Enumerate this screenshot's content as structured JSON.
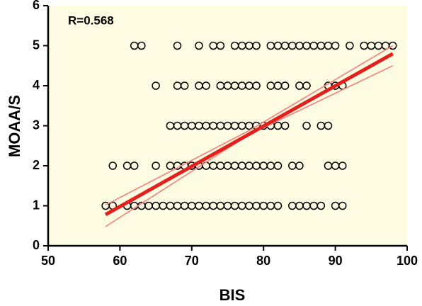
{
  "chart_data": {
    "type": "scatter",
    "annotation": "R=0.568",
    "x_label": "BIS",
    "y_label": "MOAA/S",
    "xlim": [
      50,
      100
    ],
    "xticks": [
      50,
      60,
      70,
      80,
      90,
      100
    ],
    "ylim": [
      0,
      6
    ],
    "yticks": [
      0,
      1,
      2,
      3,
      4,
      5,
      6
    ],
    "marker_color": "#000000",
    "background": "#fdfbe1",
    "x": [
      62,
      63,
      68,
      71,
      73,
      74,
      76,
      77,
      78,
      79,
      81,
      82,
      83,
      84,
      85,
      86,
      87,
      88,
      89,
      90,
      92,
      94,
      95,
      96,
      97,
      98,
      65,
      68,
      69,
      71,
      72,
      74,
      75,
      76,
      77,
      78,
      79,
      81,
      82,
      83,
      85,
      86,
      89,
      90,
      91,
      67,
      68,
      69,
      70,
      71,
      72,
      73,
      74,
      75,
      76,
      77,
      78,
      79,
      80,
      81,
      82,
      83,
      86,
      88,
      89,
      59,
      61,
      62,
      65,
      67,
      68,
      69,
      70,
      71,
      72,
      73,
      74,
      75,
      76,
      77,
      78,
      79,
      80,
      81,
      82,
      84,
      85,
      89,
      90,
      91,
      58,
      59,
      61,
      62,
      63,
      64,
      65,
      66,
      67,
      68,
      69,
      70,
      71,
      72,
      73,
      74,
      75,
      76,
      77,
      78,
      79,
      80,
      81,
      82,
      84,
      85,
      86,
      87,
      88,
      90,
      91
    ],
    "values": [
      5,
      5,
      5,
      5,
      5,
      5,
      5,
      5,
      5,
      5,
      5,
      5,
      5,
      5,
      5,
      5,
      5,
      5,
      5,
      5,
      5,
      5,
      5,
      5,
      5,
      5,
      4,
      4,
      4,
      4,
      4,
      4,
      4,
      4,
      4,
      4,
      4,
      4,
      4,
      4,
      4,
      4,
      4,
      4,
      4,
      3,
      3,
      3,
      3,
      3,
      3,
      3,
      3,
      3,
      3,
      3,
      3,
      3,
      3,
      3,
      3,
      3,
      3,
      3,
      3,
      2,
      2,
      2,
      2,
      2,
      2,
      2,
      2,
      2,
      2,
      2,
      2,
      2,
      2,
      2,
      2,
      2,
      2,
      2,
      2,
      2,
      2,
      2,
      2,
      2,
      1,
      1,
      1,
      1,
      1,
      1,
      1,
      1,
      1,
      1,
      1,
      1,
      1,
      1,
      1,
      1,
      1,
      1,
      1,
      1,
      1,
      1,
      1,
      1,
      1,
      1,
      1,
      1,
      1,
      1,
      1
    ],
    "fit": {
      "color": "#e3201b",
      "x": [
        58,
        98
      ],
      "y": [
        0.78,
        4.8
      ]
    },
    "ci": {
      "color": "#f08a86",
      "x": [
        58,
        78,
        98
      ],
      "upper": [
        1.02,
        2.88,
        5.0
      ],
      "lower": [
        0.48,
        2.78,
        4.5
      ]
    }
  }
}
